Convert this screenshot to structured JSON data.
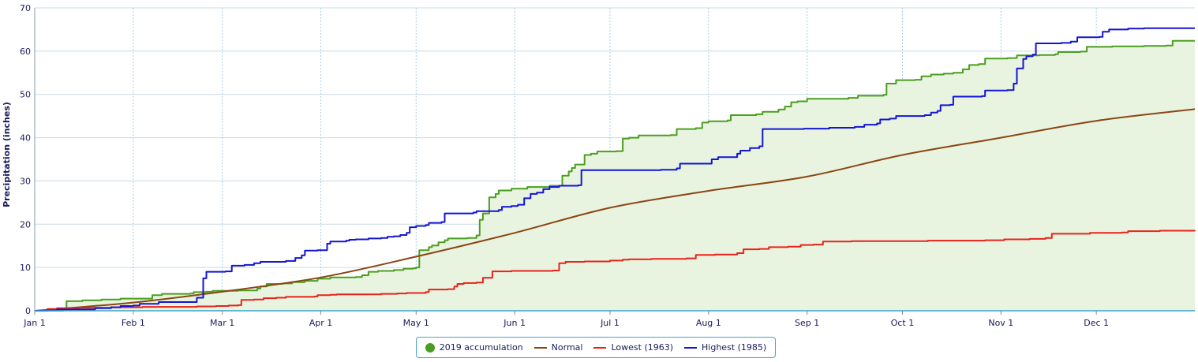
{
  "chart_data": {
    "type": "line",
    "ylabel": "Precipitation (inches)",
    "ylim": [
      0,
      70
    ],
    "yticks": [
      0,
      10,
      20,
      30,
      40,
      50,
      60,
      70
    ],
    "xlim": [
      1,
      366
    ],
    "grid": true,
    "legend_position": "bottom-center",
    "x_ticks": [
      {
        "label": "Jan 1",
        "day": 1
      },
      {
        "label": "Feb 1",
        "day": 32
      },
      {
        "label": "Mar 1",
        "day": 60
      },
      {
        "label": "Apr 1",
        "day": 91
      },
      {
        "label": "May 1",
        "day": 121
      },
      {
        "label": "Jun 1",
        "day": 152
      },
      {
        "label": "Jul 1",
        "day": 182
      },
      {
        "label": "Aug 1",
        "day": 213
      },
      {
        "label": "Sep 1",
        "day": 244
      },
      {
        "label": "Oct 1",
        "day": 274
      },
      {
        "label": "Nov 1",
        "day": 305
      },
      {
        "label": "Dec 1",
        "day": 335
      }
    ],
    "x_unit": "day of year",
    "series": [
      {
        "name": "2019 accumulation",
        "color": "#4a9e1f",
        "fill": "#e8f4e0",
        "marker": "dot",
        "style": "step",
        "points": [
          [
            1,
            0
          ],
          [
            10,
            0.3
          ],
          [
            11,
            2.2
          ],
          [
            16,
            2.4
          ],
          [
            22,
            2.6
          ],
          [
            28,
            2.8
          ],
          [
            36,
            2.8
          ],
          [
            38,
            3.6
          ],
          [
            41,
            3.9
          ],
          [
            50,
            4.0
          ],
          [
            51,
            4.3
          ],
          [
            55,
            4.4
          ],
          [
            57,
            4.6
          ],
          [
            64,
            4.6
          ],
          [
            65,
            4.7
          ],
          [
            70,
            4.7
          ],
          [
            71,
            5.1
          ],
          [
            72,
            5.6
          ],
          [
            74,
            6.2
          ],
          [
            79,
            6.3
          ],
          [
            82,
            6.6
          ],
          [
            86,
            6.9
          ],
          [
            89,
            6.9
          ],
          [
            90,
            7.4
          ],
          [
            94,
            7.7
          ],
          [
            102,
            7.8
          ],
          [
            104,
            8.2
          ],
          [
            106,
            9.0
          ],
          [
            109,
            9.2
          ],
          [
            114,
            9.4
          ],
          [
            117,
            9.7
          ],
          [
            120,
            9.8
          ],
          [
            121,
            10.0
          ],
          [
            122,
            14.0
          ],
          [
            125,
            14.7
          ],
          [
            126,
            15.1
          ],
          [
            128,
            15.8
          ],
          [
            130,
            16.3
          ],
          [
            131,
            16.7
          ],
          [
            137,
            16.8
          ],
          [
            140,
            17.4
          ],
          [
            141,
            21.0
          ],
          [
            142,
            22.5
          ],
          [
            144,
            26.2
          ],
          [
            146,
            27.0
          ],
          [
            147,
            27.8
          ],
          [
            151,
            28.2
          ],
          [
            156,
            28.6
          ],
          [
            163,
            28.9
          ],
          [
            167,
            31.2
          ],
          [
            169,
            32.2
          ],
          [
            170,
            33.0
          ],
          [
            171,
            33.8
          ],
          [
            174,
            36.0
          ],
          [
            176,
            36.3
          ],
          [
            178,
            36.8
          ],
          [
            184,
            36.9
          ],
          [
            186,
            39.8
          ],
          [
            188,
            40.0
          ],
          [
            191,
            40.5
          ],
          [
            201,
            40.6
          ],
          [
            203,
            42.0
          ],
          [
            209,
            42.2
          ],
          [
            211,
            43.5
          ],
          [
            213,
            43.8
          ],
          [
            219,
            44.0
          ],
          [
            220,
            45.2
          ],
          [
            228,
            45.4
          ],
          [
            230,
            46.0
          ],
          [
            235,
            46.5
          ],
          [
            237,
            47.2
          ],
          [
            239,
            48.2
          ],
          [
            241,
            48.4
          ],
          [
            244,
            49.0
          ],
          [
            257,
            49.2
          ],
          [
            260,
            49.7
          ],
          [
            268,
            49.9
          ],
          [
            269,
            52.5
          ],
          [
            272,
            53.3
          ],
          [
            278,
            53.4
          ],
          [
            280,
            54.2
          ],
          [
            283,
            54.6
          ],
          [
            287,
            54.8
          ],
          [
            290,
            55.0
          ],
          [
            293,
            55.8
          ],
          [
            295,
            56.8
          ],
          [
            298,
            57.0
          ],
          [
            300,
            58.3
          ],
          [
            307,
            58.4
          ],
          [
            310,
            59.0
          ],
          [
            317,
            59.1
          ],
          [
            322,
            59.3
          ],
          [
            323,
            59.8
          ],
          [
            330,
            59.9
          ],
          [
            332,
            61.0
          ],
          [
            340,
            61.1
          ],
          [
            350,
            61.2
          ],
          [
            355,
            61.2
          ],
          [
            357,
            61.3
          ],
          [
            359,
            62.4
          ],
          [
            366,
            62.4
          ]
        ]
      },
      {
        "name": "Normal",
        "color": "#8b4513",
        "style": "smooth",
        "points": [
          [
            1,
            0
          ],
          [
            32,
            1.9
          ],
          [
            60,
            4.4
          ],
          [
            91,
            7.7
          ],
          [
            121,
            12.5
          ],
          [
            152,
            18.0
          ],
          [
            182,
            23.8
          ],
          [
            213,
            27.7
          ],
          [
            244,
            31.0
          ],
          [
            274,
            36.0
          ],
          [
            305,
            40.0
          ],
          [
            335,
            43.9
          ],
          [
            366,
            46.6
          ]
        ]
      },
      {
        "name": "Lowest (1963)",
        "color": "#e8221c",
        "style": "step",
        "points": [
          [
            1,
            0
          ],
          [
            5,
            0.4
          ],
          [
            8,
            0.6
          ],
          [
            15,
            0.7
          ],
          [
            25,
            0.8
          ],
          [
            30,
            0.8
          ],
          [
            35,
            0.9
          ],
          [
            45,
            0.9
          ],
          [
            52,
            1.0
          ],
          [
            58,
            1.1
          ],
          [
            62,
            1.2
          ],
          [
            65,
            1.3
          ],
          [
            66,
            2.5
          ],
          [
            70,
            2.6
          ],
          [
            73,
            2.9
          ],
          [
            77,
            3.0
          ],
          [
            80,
            3.2
          ],
          [
            87,
            3.2
          ],
          [
            89,
            3.3
          ],
          [
            90,
            3.6
          ],
          [
            93,
            3.6
          ],
          [
            94,
            3.7
          ],
          [
            96,
            3.8
          ],
          [
            104,
            3.8
          ],
          [
            110,
            3.9
          ],
          [
            115,
            4.0
          ],
          [
            118,
            4.1
          ],
          [
            124,
            4.3
          ],
          [
            125,
            4.9
          ],
          [
            131,
            5.0
          ],
          [
            133,
            5.6
          ],
          [
            134,
            6.2
          ],
          [
            136,
            6.4
          ],
          [
            140,
            6.5
          ],
          [
            142,
            7.6
          ],
          [
            145,
            9.1
          ],
          [
            151,
            9.2
          ],
          [
            164,
            9.3
          ],
          [
            166,
            11.0
          ],
          [
            168,
            11.3
          ],
          [
            174,
            11.4
          ],
          [
            182,
            11.6
          ],
          [
            186,
            11.8
          ],
          [
            188,
            11.9
          ],
          [
            195,
            12.0
          ],
          [
            206,
            12.1
          ],
          [
            209,
            12.9
          ],
          [
            215,
            13.0
          ],
          [
            222,
            13.3
          ],
          [
            224,
            14.2
          ],
          [
            229,
            14.3
          ],
          [
            232,
            14.7
          ],
          [
            238,
            14.8
          ],
          [
            242,
            15.2
          ],
          [
            246,
            15.3
          ],
          [
            249,
            16.0
          ],
          [
            258,
            16.1
          ],
          [
            265,
            16.1
          ],
          [
            270,
            16.1
          ],
          [
            282,
            16.2
          ],
          [
            290,
            16.2
          ],
          [
            300,
            16.3
          ],
          [
            306,
            16.5
          ],
          [
            314,
            16.6
          ],
          [
            319,
            16.8
          ],
          [
            321,
            17.8
          ],
          [
            333,
            18.0
          ],
          [
            343,
            18.1
          ],
          [
            345,
            18.4
          ],
          [
            355,
            18.5
          ],
          [
            366,
            18.6
          ]
        ]
      },
      {
        "name": "Highest (1985)",
        "color": "#1414d4",
        "style": "step",
        "points": [
          [
            1,
            0
          ],
          [
            5,
            0.1
          ],
          [
            8,
            0.3
          ],
          [
            20,
            0.6
          ],
          [
            25,
            0.8
          ],
          [
            28,
            1.1
          ],
          [
            32,
            1.2
          ],
          [
            34,
            1.6
          ],
          [
            40,
            2.0
          ],
          [
            50,
            2.0
          ],
          [
            52,
            3.0
          ],
          [
            54,
            7.5
          ],
          [
            55,
            9.0
          ],
          [
            61,
            9.1
          ],
          [
            63,
            10.4
          ],
          [
            67,
            10.6
          ],
          [
            70,
            11.0
          ],
          [
            72,
            11.3
          ],
          [
            80,
            11.5
          ],
          [
            83,
            12.2
          ],
          [
            85,
            12.8
          ],
          [
            86,
            13.9
          ],
          [
            90,
            14.0
          ],
          [
            93,
            15.5
          ],
          [
            94,
            16.0
          ],
          [
            99,
            16.2
          ],
          [
            100,
            16.4
          ],
          [
            102,
            16.5
          ],
          [
            106,
            16.7
          ],
          [
            110,
            16.8
          ],
          [
            112,
            17.1
          ],
          [
            114,
            17.2
          ],
          [
            116,
            17.5
          ],
          [
            118,
            18.0
          ],
          [
            119,
            19.3
          ],
          [
            121,
            19.6
          ],
          [
            124,
            19.8
          ],
          [
            125,
            20.3
          ],
          [
            129,
            20.5
          ],
          [
            130,
            22.5
          ],
          [
            139,
            22.7
          ],
          [
            140,
            23.0
          ],
          [
            147,
            23.3
          ],
          [
            148,
            24.0
          ],
          [
            151,
            24.2
          ],
          [
            153,
            24.5
          ],
          [
            155,
            26.0
          ],
          [
            157,
            27.0
          ],
          [
            159,
            27.3
          ],
          [
            161,
            28.1
          ],
          [
            163,
            28.6
          ],
          [
            166,
            28.9
          ],
          [
            172,
            29.0
          ],
          [
            173,
            32.5
          ],
          [
            190,
            32.5
          ],
          [
            198,
            32.6
          ],
          [
            203,
            32.9
          ],
          [
            204,
            34.0
          ],
          [
            213,
            34.0
          ],
          [
            214,
            35.0
          ],
          [
            216,
            35.5
          ],
          [
            220,
            35.5
          ],
          [
            222,
            36.3
          ],
          [
            223,
            37.0
          ],
          [
            226,
            37.6
          ],
          [
            229,
            38.0
          ],
          [
            230,
            42.0
          ],
          [
            243,
            42.1
          ],
          [
            251,
            42.3
          ],
          [
            259,
            42.5
          ],
          [
            262,
            43.0
          ],
          [
            266,
            43.3
          ],
          [
            267,
            44.2
          ],
          [
            270,
            44.4
          ],
          [
            272,
            45.0
          ],
          [
            281,
            45.2
          ],
          [
            283,
            45.8
          ],
          [
            285,
            46.2
          ],
          [
            286,
            47.5
          ],
          [
            289,
            47.6
          ],
          [
            290,
            49.5
          ],
          [
            299,
            49.6
          ],
          [
            300,
            50.9
          ],
          [
            307,
            51.0
          ],
          [
            309,
            52.5
          ],
          [
            310,
            56.0
          ],
          [
            312,
            58.2
          ],
          [
            313,
            58.8
          ],
          [
            315,
            59.2
          ],
          [
            316,
            61.8
          ],
          [
            324,
            61.9
          ],
          [
            327,
            62.2
          ],
          [
            329,
            63.2
          ],
          [
            336,
            63.3
          ],
          [
            337,
            64.5
          ],
          [
            339,
            65.0
          ],
          [
            345,
            65.2
          ],
          [
            350,
            65.3
          ],
          [
            366,
            65.3
          ]
        ]
      }
    ]
  }
}
